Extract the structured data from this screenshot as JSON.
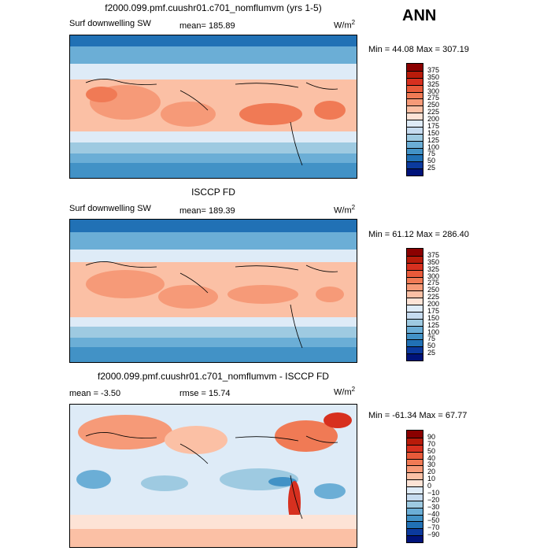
{
  "season": "ANN",
  "panels": [
    {
      "title": "f2000.099.pmf.cuushr01.c701_nomflumvm (yrs 1-5)",
      "left_label": "Surf downwelling SW",
      "stat_label": "mean= 185.89",
      "units_base": "W/m",
      "units_exp": "2",
      "minmax": "Min =  44.08 Max = 307.19",
      "levels": [
        "375",
        "350",
        "325",
        "300",
        "275",
        "250",
        "225",
        "200",
        "175",
        "150",
        "125",
        "100",
        "75",
        "50",
        "25"
      ],
      "colors": [
        "#8b0000",
        "#b81b0a",
        "#d7301f",
        "#e85a3a",
        "#f07a55",
        "#f69a78",
        "#fbc0a5",
        "#fde3d6",
        "#deebf7",
        "#c6dbef",
        "#9ecae1",
        "#6baed6",
        "#4292c6",
        "#2171b5",
        "#0b3a9e",
        "#00137a"
      ]
    },
    {
      "title": "ISCCP FD",
      "left_label": "Surf downwelling SW",
      "stat_label": "mean= 189.39",
      "units_base": "W/m",
      "units_exp": "2",
      "minmax": "Min =  61.12 Max = 286.40",
      "levels": [
        "375",
        "350",
        "325",
        "300",
        "275",
        "250",
        "225",
        "200",
        "175",
        "150",
        "125",
        "100",
        "75",
        "50",
        "25"
      ],
      "colors": [
        "#8b0000",
        "#b81b0a",
        "#d7301f",
        "#e85a3a",
        "#f07a55",
        "#f69a78",
        "#fbc0a5",
        "#fde3d6",
        "#deebf7",
        "#c6dbef",
        "#9ecae1",
        "#6baed6",
        "#4292c6",
        "#2171b5",
        "#0b3a9e",
        "#00137a"
      ]
    },
    {
      "title": "f2000.099.pmf.cuushr01.c701_nomflumvm - ISCCP FD",
      "left_label": "mean =  -3.50",
      "stat_label": "rmse =  15.74",
      "units_base": "W/m",
      "units_exp": "2",
      "minmax": "Min = -61.34 Max =  67.77",
      "levels": [
        "90",
        "70",
        "50",
        "40",
        "30",
        "20",
        "10",
        "0",
        "−10",
        "−20",
        "−30",
        "−40",
        "−50",
        "−70",
        "−90"
      ],
      "colors": [
        "#8b0000",
        "#b81b0a",
        "#d7301f",
        "#e85a3a",
        "#f07a55",
        "#f69a78",
        "#fbc0a5",
        "#fde3d6",
        "#deebf7",
        "#c6dbef",
        "#9ecae1",
        "#6baed6",
        "#4292c6",
        "#2171b5",
        "#0b3a9e",
        "#00137a"
      ]
    }
  ],
  "chart_data": [
    {
      "type": "heatmap",
      "title": "f2000.099.pmf.cuushr01.c701_nomflumvm (yrs 1-5)",
      "variable": "Surf downwelling SW",
      "units": "W/m2",
      "mean": 185.89,
      "min": 44.08,
      "max": 307.19,
      "contour_levels": [
        25,
        50,
        75,
        100,
        125,
        150,
        175,
        200,
        225,
        250,
        275,
        300,
        325,
        350,
        375
      ]
    },
    {
      "type": "heatmap",
      "title": "ISCCP FD",
      "variable": "Surf downwelling SW",
      "units": "W/m2",
      "mean": 189.39,
      "min": 61.12,
      "max": 286.4,
      "contour_levels": [
        25,
        50,
        75,
        100,
        125,
        150,
        175,
        200,
        225,
        250,
        275,
        300,
        325,
        350,
        375
      ]
    },
    {
      "type": "heatmap",
      "title": "f2000.099.pmf.cuushr01.c701_nomflumvm - ISCCP FD",
      "units": "W/m2",
      "mean": -3.5,
      "rmse": 15.74,
      "min": -61.34,
      "max": 67.77,
      "contour_levels": [
        -90,
        -70,
        -50,
        -40,
        -30,
        -20,
        -10,
        0,
        10,
        20,
        30,
        40,
        50,
        70,
        90
      ]
    }
  ]
}
